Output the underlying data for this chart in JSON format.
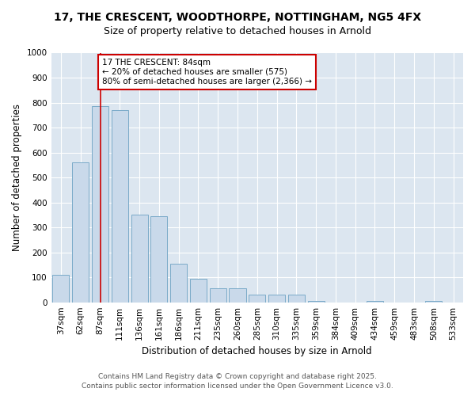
{
  "title_line1": "17, THE CRESCENT, WOODTHORPE, NOTTINGHAM, NG5 4FX",
  "title_line2": "Size of property relative to detached houses in Arnold",
  "xlabel": "Distribution of detached houses by size in Arnold",
  "ylabel": "Number of detached properties",
  "categories": [
    "37sqm",
    "62sqm",
    "87sqm",
    "111sqm",
    "136sqm",
    "161sqm",
    "186sqm",
    "211sqm",
    "235sqm",
    "260sqm",
    "285sqm",
    "310sqm",
    "335sqm",
    "359sqm",
    "384sqm",
    "409sqm",
    "434sqm",
    "459sqm",
    "483sqm",
    "508sqm",
    "533sqm"
  ],
  "values": [
    110,
    560,
    785,
    770,
    350,
    345,
    155,
    95,
    55,
    55,
    30,
    30,
    30,
    5,
    0,
    0,
    5,
    0,
    0,
    5,
    0
  ],
  "bar_color": "#c9d9ea",
  "bar_edge_color": "#7aaac8",
  "vline_x_index": 2,
  "vline_color": "#cc0000",
  "annotation_text": "17 THE CRESCENT: 84sqm\n← 20% of detached houses are smaller (575)\n80% of semi-detached houses are larger (2,366) →",
  "annotation_box_color": "#ffffff",
  "annotation_box_edge": "#cc0000",
  "ylim": [
    0,
    1000
  ],
  "yticks": [
    0,
    100,
    200,
    300,
    400,
    500,
    600,
    700,
    800,
    900,
    1000
  ],
  "plot_bg_color": "#dce6f0",
  "grid_color": "#ffffff",
  "fig_bg_color": "#ffffff",
  "footer_line1": "Contains HM Land Registry data © Crown copyright and database right 2025.",
  "footer_line2": "Contains public sector information licensed under the Open Government Licence v3.0.",
  "title_fontsize": 10,
  "subtitle_fontsize": 9,
  "axis_label_fontsize": 8.5,
  "tick_fontsize": 7.5,
  "annotation_fontsize": 7.5,
  "footer_fontsize": 6.5
}
